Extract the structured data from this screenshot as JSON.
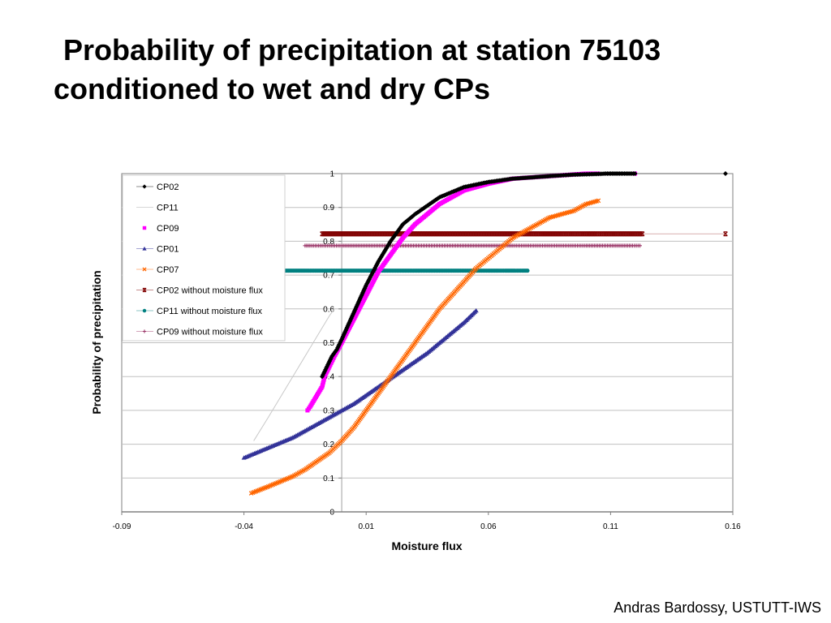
{
  "title": {
    "line1": "Probability of precipitation at station 75103",
    "line2": "conditioned to wet and dry CPs"
  },
  "footer": "Andras Bardossy, USTUTT-IWS",
  "chart_data": {
    "type": "scatter",
    "title": "",
    "xlabel": "Moisture flux",
    "ylabel": "Probability of precipitation",
    "xlim": [
      -0.09,
      0.16
    ],
    "ylim": [
      0,
      1
    ],
    "x_ticks": [
      "-0.09",
      "-0.04",
      "0.01",
      "0.06",
      "0.11",
      "0.16"
    ],
    "x_tick_values": [
      -0.09,
      -0.04,
      0.01,
      0.06,
      0.11,
      0.16
    ],
    "y_ticks": [
      "0",
      "0.1",
      "0.2",
      "0.3",
      "0.4",
      "0.5",
      "0.6",
      "0.7",
      "0.8",
      "0.9",
      "1"
    ],
    "y_tick_values": [
      0,
      0.1,
      0.2,
      0.3,
      0.4,
      0.5,
      0.6,
      0.7,
      0.8,
      0.9,
      1
    ],
    "grid": "horizontal",
    "legend_position": "top-left",
    "series": [
      {
        "name": "CP02",
        "color": "#000000",
        "marker": "diamond",
        "x": [
          -0.008,
          -0.006,
          -0.004,
          -0.002,
          0.0,
          0.005,
          0.01,
          0.015,
          0.02,
          0.025,
          0.03,
          0.04,
          0.05,
          0.06,
          0.07,
          0.08,
          0.09,
          0.095,
          0.1,
          0.105,
          0.108,
          0.115,
          0.12,
          0.157
        ],
        "y": [
          0.4,
          0.43,
          0.46,
          0.48,
          0.51,
          0.59,
          0.67,
          0.74,
          0.8,
          0.85,
          0.88,
          0.93,
          0.96,
          0.975,
          0.985,
          0.99,
          0.995,
          0.997,
          0.998,
          0.999,
          1.0,
          1.0,
          1.0,
          1.0
        ]
      },
      {
        "name": "CP11",
        "color": "#c8c8c8",
        "marker": "none",
        "x": [
          -0.036,
          -0.03,
          -0.025,
          -0.02,
          -0.015,
          -0.01,
          -0.005,
          -0.003
        ],
        "y": [
          0.21,
          0.28,
          0.34,
          0.4,
          0.46,
          0.52,
          0.58,
          0.6
        ]
      },
      {
        "name": "CP09",
        "color": "#ff00ff",
        "marker": "square",
        "x": [
          -0.014,
          -0.013,
          -0.008,
          -0.007,
          -0.005,
          -0.003,
          0.0,
          0.005,
          0.01,
          0.015,
          0.02,
          0.025,
          0.03,
          0.04,
          0.05,
          0.06,
          0.07,
          0.08,
          0.09,
          0.094,
          0.1,
          0.105,
          0.12
        ],
        "y": [
          0.3,
          0.31,
          0.37,
          0.4,
          0.43,
          0.46,
          0.5,
          0.57,
          0.64,
          0.71,
          0.76,
          0.81,
          0.85,
          0.91,
          0.95,
          0.97,
          0.985,
          0.99,
          0.995,
          0.997,
          1.0,
          1.0,
          1.0
        ]
      },
      {
        "name": "CP01",
        "color": "#333399",
        "marker": "triangle",
        "x": [
          -0.04,
          -0.035,
          -0.03,
          -0.025,
          -0.02,
          -0.015,
          -0.01,
          -0.005,
          0.0,
          0.005,
          0.01,
          0.015,
          0.02,
          0.025,
          0.03,
          0.035,
          0.04,
          0.045,
          0.05,
          0.055
        ],
        "y": [
          0.16,
          0.175,
          0.19,
          0.205,
          0.22,
          0.24,
          0.26,
          0.28,
          0.3,
          0.32,
          0.345,
          0.37,
          0.395,
          0.42,
          0.445,
          0.47,
          0.5,
          0.53,
          0.56,
          0.595
        ]
      },
      {
        "name": "CP07",
        "color": "#ff6600",
        "marker": "x",
        "x": [
          -0.037,
          -0.03,
          -0.025,
          -0.02,
          -0.015,
          -0.01,
          -0.005,
          0.0,
          0.005,
          0.01,
          0.015,
          0.02,
          0.025,
          0.03,
          0.035,
          0.04,
          0.045,
          0.05,
          0.055,
          0.06,
          0.065,
          0.07,
          0.075,
          0.08,
          0.085,
          0.09,
          0.095,
          0.1,
          0.105
        ],
        "y": [
          0.055,
          0.075,
          0.09,
          0.105,
          0.125,
          0.15,
          0.175,
          0.21,
          0.25,
          0.3,
          0.35,
          0.4,
          0.45,
          0.5,
          0.55,
          0.6,
          0.64,
          0.68,
          0.72,
          0.75,
          0.78,
          0.81,
          0.83,
          0.85,
          0.87,
          0.88,
          0.89,
          0.91,
          0.92
        ]
      },
      {
        "name": "CP02 without moisture flux",
        "color": "#800000",
        "marker": "star",
        "x": [
          -0.008,
          -0.004,
          0.0,
          0.01,
          0.02,
          0.03,
          0.04,
          0.05,
          0.06,
          0.07,
          0.077,
          0.082,
          0.088,
          0.09,
          0.095,
          0.1,
          0.104,
          0.107,
          0.114,
          0.123,
          0.157
        ],
        "y": [
          0.822,
          0.822,
          0.822,
          0.822,
          0.822,
          0.822,
          0.822,
          0.822,
          0.822,
          0.822,
          0.822,
          0.822,
          0.822,
          0.822,
          0.822,
          0.822,
          0.822,
          0.822,
          0.822,
          0.822,
          0.822
        ]
      },
      {
        "name": "CP11 without moisture flux",
        "color": "#008080",
        "marker": "circle",
        "x": [
          -0.023,
          -0.015,
          -0.01,
          -0.005,
          0.0,
          0.01,
          0.02,
          0.03,
          0.04,
          0.045,
          0.05,
          0.055,
          0.06,
          0.064,
          0.067,
          0.071,
          0.074,
          0.076
        ],
        "y": [
          0.713,
          0.713,
          0.713,
          0.713,
          0.713,
          0.713,
          0.713,
          0.713,
          0.713,
          0.713,
          0.713,
          0.713,
          0.713,
          0.713,
          0.713,
          0.713,
          0.713,
          0.713
        ]
      },
      {
        "name": "CP09 without moisture flux",
        "color": "#993366",
        "marker": "plus",
        "x": [
          -0.015,
          -0.013,
          -0.008,
          -0.005,
          0.0,
          0.01,
          0.02,
          0.03,
          0.04,
          0.05,
          0.06,
          0.066,
          0.07,
          0.075,
          0.08,
          0.085,
          0.09,
          0.095,
          0.1,
          0.104,
          0.106,
          0.119,
          0.122
        ],
        "y": [
          0.787,
          0.787,
          0.787,
          0.787,
          0.787,
          0.787,
          0.787,
          0.787,
          0.787,
          0.787,
          0.787,
          0.787,
          0.787,
          0.787,
          0.787,
          0.787,
          0.787,
          0.787,
          0.787,
          0.787,
          0.787,
          0.787,
          0.787
        ]
      }
    ]
  }
}
